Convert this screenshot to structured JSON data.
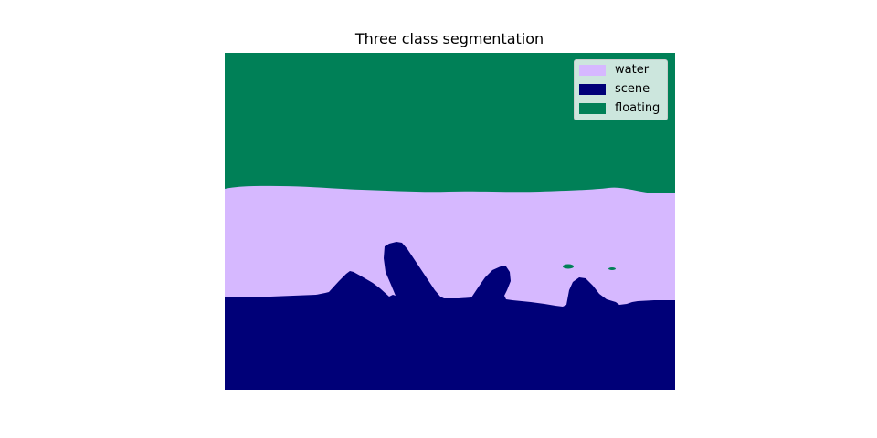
{
  "chart_data": {
    "type": "segmentation-map",
    "title": "Three class segmentation",
    "xlabel": "",
    "ylabel": "",
    "axes_visible": false,
    "grid": false,
    "legend_position": "top-right",
    "classes": [
      {
        "name": "water",
        "color": "#d6b8ff"
      },
      {
        "name": "scene",
        "color": "#000078"
      },
      {
        "name": "floating",
        "color": "#008057"
      }
    ]
  }
}
